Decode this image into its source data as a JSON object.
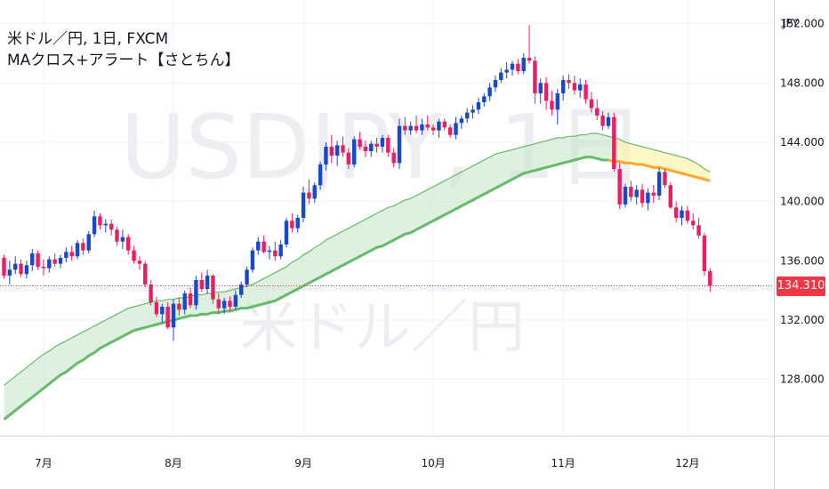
{
  "header": {
    "line1": "米ドル／円, 1日, FXCM",
    "line2": "MAクロス+アラート【さとちん】"
  },
  "watermark": {
    "main": "USDJPY, 1日",
    "sub": "米ドル／円"
  },
  "currency_label": "JPY",
  "last_price_label": "134.310",
  "colors": {
    "up": "#1848cc",
    "down": "#e91e63",
    "ma_green": "#66bb6a",
    "ma_orange": "#ffa726",
    "band_green": "#c8e6c9",
    "band_yellow": "#fff3a0",
    "price_tag": "#f23645"
  },
  "chart_data": {
    "type": "candlestick",
    "y_ticks": [
      "152.000",
      "148.000",
      "144.000",
      "140.000",
      "136.000",
      "132.000",
      "128.000"
    ],
    "y_tick_values": [
      152,
      148,
      144,
      140,
      136,
      132,
      128
    ],
    "ylim": [
      124.2,
      153.6
    ],
    "x_ticks": [
      "7月",
      "8月",
      "9月",
      "10月",
      "11月",
      "12月"
    ],
    "x_tick_index": [
      7,
      30,
      53,
      76,
      99,
      121
    ],
    "last_price": 134.31,
    "candles": [
      [
        136.2,
        136.4,
        134.8,
        135.0
      ],
      [
        135.0,
        136.0,
        134.4,
        135.4
      ],
      [
        135.4,
        136.3,
        135.1,
        135.8
      ],
      [
        135.8,
        136.1,
        134.9,
        135.1
      ],
      [
        135.1,
        136.0,
        134.8,
        135.7
      ],
      [
        135.7,
        136.8,
        135.3,
        136.5
      ],
      [
        136.5,
        136.7,
        135.4,
        135.6
      ],
      [
        135.6,
        136.1,
        135.0,
        135.5
      ],
      [
        135.5,
        136.3,
        135.2,
        136.1
      ],
      [
        136.1,
        136.5,
        135.6,
        135.8
      ],
      [
        135.8,
        136.4,
        135.5,
        136.2
      ],
      [
        136.2,
        136.9,
        135.9,
        136.6
      ],
      [
        136.6,
        137.0,
        136.0,
        136.3
      ],
      [
        136.3,
        137.4,
        136.1,
        137.2
      ],
      [
        137.2,
        137.5,
        136.4,
        136.7
      ],
      [
        136.7,
        138.0,
        136.5,
        137.8
      ],
      [
        137.8,
        139.4,
        137.6,
        139.0
      ],
      [
        139.0,
        139.2,
        138.1,
        138.4
      ],
      [
        138.4,
        138.8,
        137.9,
        138.5
      ],
      [
        138.5,
        138.8,
        137.7,
        138.1
      ],
      [
        138.1,
        138.3,
        137.0,
        137.3
      ],
      [
        137.3,
        138.1,
        136.8,
        137.6
      ],
      [
        137.6,
        137.8,
        136.4,
        136.7
      ],
      [
        136.7,
        137.0,
        135.8,
        136.0
      ],
      [
        136.0,
        136.3,
        135.4,
        135.8
      ],
      [
        135.8,
        136.0,
        134.2,
        134.4
      ],
      [
        134.4,
        134.7,
        133.0,
        133.2
      ],
      [
        133.2,
        133.6,
        132.2,
        132.4
      ],
      [
        132.4,
        133.1,
        131.8,
        132.9
      ],
      [
        132.9,
        133.2,
        131.4,
        131.5
      ],
      [
        131.5,
        133.4,
        130.6,
        133.1
      ],
      [
        133.1,
        133.5,
        132.3,
        132.7
      ],
      [
        132.7,
        134.0,
        132.4,
        133.8
      ],
      [
        133.8,
        134.2,
        132.8,
        133.0
      ],
      [
        133.0,
        135.0,
        132.7,
        134.7
      ],
      [
        134.7,
        135.2,
        133.9,
        134.1
      ],
      [
        134.1,
        135.4,
        133.8,
        135.0
      ],
      [
        135.0,
        135.1,
        133.1,
        133.4
      ],
      [
        133.4,
        133.8,
        132.4,
        132.8
      ],
      [
        132.8,
        133.5,
        132.4,
        133.3
      ],
      [
        133.3,
        133.6,
        132.6,
        132.9
      ],
      [
        132.9,
        134.0,
        132.7,
        133.7
      ],
      [
        133.7,
        134.6,
        133.5,
        134.4
      ],
      [
        134.4,
        135.6,
        134.2,
        135.4
      ],
      [
        135.4,
        136.9,
        135.2,
        136.7
      ],
      [
        136.7,
        137.6,
        136.4,
        137.3
      ],
      [
        137.3,
        137.7,
        136.5,
        136.6
      ],
      [
        136.6,
        137.0,
        136.1,
        136.7
      ],
      [
        136.7,
        137.3,
        136.0,
        136.3
      ],
      [
        136.3,
        137.4,
        136.1,
        137.1
      ],
      [
        137.1,
        138.9,
        136.9,
        138.7
      ],
      [
        138.7,
        139.2,
        137.9,
        138.2
      ],
      [
        138.2,
        139.1,
        137.9,
        138.9
      ],
      [
        138.9,
        141.0,
        138.6,
        140.6
      ],
      [
        140.6,
        141.5,
        139.8,
        140.2
      ],
      [
        140.2,
        141.3,
        139.9,
        141.1
      ],
      [
        141.1,
        142.7,
        140.8,
        142.5
      ],
      [
        142.5,
        144.0,
        142.1,
        143.7
      ],
      [
        143.7,
        144.5,
        142.6,
        143.1
      ],
      [
        143.1,
        144.1,
        142.4,
        143.8
      ],
      [
        143.8,
        144.4,
        143.0,
        143.3
      ],
      [
        143.3,
        143.6,
        142.2,
        142.5
      ],
      [
        142.5,
        144.4,
        142.3,
        144.2
      ],
      [
        144.2,
        144.7,
        143.5,
        143.7
      ],
      [
        143.7,
        144.1,
        143.0,
        143.4
      ],
      [
        143.4,
        144.1,
        143.0,
        143.9
      ],
      [
        143.9,
        144.3,
        143.3,
        143.7
      ],
      [
        143.7,
        144.5,
        143.3,
        144.3
      ],
      [
        144.3,
        144.5,
        143.0,
        143.3
      ],
      [
        143.3,
        143.6,
        142.3,
        142.6
      ],
      [
        142.6,
        145.6,
        142.2,
        145.1
      ],
      [
        145.1,
        145.7,
        144.5,
        144.8
      ],
      [
        144.8,
        145.4,
        144.5,
        145.1
      ],
      [
        145.1,
        145.8,
        144.6,
        144.8
      ],
      [
        144.8,
        145.6,
        144.5,
        145.2
      ],
      [
        145.2,
        145.8,
        144.8,
        145.0
      ],
      [
        145.0,
        145.2,
        144.5,
        144.8
      ],
      [
        144.8,
        145.6,
        144.3,
        145.4
      ],
      [
        145.4,
        145.6,
        144.8,
        145.0
      ],
      [
        145.0,
        145.2,
        144.3,
        144.5
      ],
      [
        144.5,
        145.7,
        144.2,
        145.3
      ],
      [
        145.3,
        145.8,
        144.9,
        145.6
      ],
      [
        145.6,
        146.3,
        145.3,
        146.0
      ],
      [
        146.0,
        146.5,
        145.6,
        146.2
      ],
      [
        146.2,
        147.0,
        145.9,
        146.7
      ],
      [
        146.7,
        147.3,
        146.4,
        147.1
      ],
      [
        147.1,
        148.0,
        146.8,
        147.7
      ],
      [
        147.7,
        148.5,
        147.4,
        148.2
      ],
      [
        148.2,
        149.0,
        148.0,
        148.7
      ],
      [
        148.7,
        149.4,
        148.3,
        148.9
      ],
      [
        148.9,
        149.5,
        148.5,
        149.3
      ],
      [
        149.3,
        149.6,
        148.6,
        148.8
      ],
      [
        148.8,
        150.0,
        148.6,
        149.7
      ],
      [
        149.7,
        151.9,
        149.3,
        149.5
      ],
      [
        149.5,
        149.8,
        146.6,
        147.3
      ],
      [
        147.3,
        148.3,
        146.6,
        148.0
      ],
      [
        148.0,
        148.4,
        146.2,
        146.8
      ],
      [
        146.8,
        147.5,
        145.8,
        146.2
      ],
      [
        146.2,
        147.6,
        145.2,
        147.3
      ],
      [
        147.3,
        148.5,
        146.8,
        148.2
      ],
      [
        148.2,
        148.6,
        147.6,
        148.0
      ],
      [
        148.0,
        148.5,
        147.2,
        147.5
      ],
      [
        147.5,
        148.3,
        147.0,
        147.9
      ],
      [
        147.9,
        148.2,
        146.6,
        146.9
      ],
      [
        146.9,
        147.4,
        146.0,
        146.3
      ],
      [
        146.3,
        146.9,
        145.5,
        145.8
      ],
      [
        145.8,
        146.1,
        144.8,
        145.1
      ],
      [
        145.1,
        146.0,
        144.9,
        145.7
      ],
      [
        145.7,
        146.0,
        142.0,
        142.2
      ],
      [
        142.2,
        142.6,
        139.5,
        139.8
      ],
      [
        139.8,
        141.2,
        139.6,
        141.0
      ],
      [
        141.0,
        141.4,
        140.0,
        140.3
      ],
      [
        140.3,
        141.1,
        139.8,
        140.8
      ],
      [
        140.8,
        141.2,
        139.6,
        139.9
      ],
      [
        139.9,
        140.9,
        139.4,
        140.6
      ],
      [
        140.6,
        141.1,
        139.9,
        140.4
      ],
      [
        140.4,
        142.3,
        140.1,
        142.0
      ],
      [
        142.0,
        142.2,
        140.9,
        141.1
      ],
      [
        141.1,
        141.3,
        139.5,
        139.6
      ],
      [
        139.6,
        140.0,
        138.6,
        138.9
      ],
      [
        138.9,
        139.7,
        138.4,
        139.4
      ],
      [
        139.4,
        139.7,
        138.5,
        138.7
      ],
      [
        138.7,
        139.2,
        138.1,
        138.4
      ],
      [
        138.4,
        138.9,
        137.5,
        137.7
      ],
      [
        137.7,
        137.9,
        135.0,
        135.3
      ],
      [
        135.3,
        135.5,
        133.9,
        134.31
      ]
    ],
    "ma_fast_upper": [
      127.6,
      127.9,
      128.2,
      128.5,
      128.8,
      129.1,
      129.4,
      129.7,
      129.9,
      130.2,
      130.4,
      130.6,
      130.8,
      131.0,
      131.2,
      131.4,
      131.6,
      131.8,
      132.0,
      132.2,
      132.4,
      132.6,
      132.8,
      132.9,
      133.0,
      133.1,
      133.2,
      133.3,
      133.3,
      133.4,
      133.4,
      133.5,
      133.5,
      133.6,
      133.7,
      133.7,
      133.8,
      133.8,
      133.9,
      133.9,
      134.0,
      134.1,
      134.2,
      134.3,
      134.4,
      134.6,
      134.8,
      135.0,
      135.2,
      135.4,
      135.6,
      135.9,
      136.1,
      136.4,
      136.6,
      136.9,
      137.1,
      137.4,
      137.6,
      137.8,
      138.0,
      138.2,
      138.4,
      138.6,
      138.8,
      139.0,
      139.2,
      139.4,
      139.6,
      139.7,
      139.9,
      140.1,
      140.2,
      140.4,
      140.6,
      140.8,
      141.0,
      141.2,
      141.4,
      141.6,
      141.8,
      142.0,
      142.2,
      142.4,
      142.6,
      142.8,
      143.0,
      143.2,
      143.3,
      143.4,
      143.5,
      143.6,
      143.7,
      143.8,
      143.9,
      144.0,
      144.1,
      144.2,
      144.3,
      144.3,
      144.4,
      144.4,
      144.5,
      144.5,
      144.6,
      144.6,
      144.5,
      144.4,
      144.3,
      144.2,
      144.0,
      143.9,
      143.8,
      143.7,
      143.6,
      143.5,
      143.4,
      143.3,
      143.2,
      143.1,
      143.0,
      142.9,
      142.7,
      142.5,
      142.2,
      142.0
    ],
    "ma_slow": [
      125.3,
      125.6,
      125.9,
      126.2,
      126.5,
      126.8,
      127.1,
      127.4,
      127.7,
      128.0,
      128.3,
      128.5,
      128.8,
      129.1,
      129.3,
      129.6,
      129.8,
      130.1,
      130.3,
      130.5,
      130.7,
      130.9,
      131.1,
      131.3,
      131.4,
      131.5,
      131.6,
      131.7,
      131.8,
      131.9,
      132.0,
      132.1,
      132.2,
      132.3,
      132.3,
      132.4,
      132.4,
      132.5,
      132.5,
      132.6,
      132.6,
      132.7,
      132.8,
      132.8,
      132.9,
      133.0,
      133.1,
      133.2,
      133.3,
      133.5,
      133.7,
      133.9,
      134.1,
      134.3,
      134.5,
      134.7,
      134.9,
      135.1,
      135.3,
      135.5,
      135.7,
      135.9,
      136.1,
      136.3,
      136.5,
      136.7,
      136.9,
      137.0,
      137.2,
      137.4,
      137.6,
      137.8,
      137.9,
      138.1,
      138.3,
      138.5,
      138.7,
      138.9,
      139.1,
      139.3,
      139.5,
      139.7,
      139.9,
      140.1,
      140.3,
      140.5,
      140.7,
      140.9,
      141.1,
      141.3,
      141.5,
      141.7,
      141.9,
      142.0,
      142.1,
      142.2,
      142.3,
      142.4,
      142.5,
      142.6,
      142.7,
      142.8,
      142.9,
      143.0,
      143.0,
      142.9,
      142.8,
      142.8,
      142.7,
      142.7,
      142.6,
      142.6,
      142.5,
      142.5,
      142.4,
      142.3,
      142.3,
      142.2,
      142.1,
      142.0,
      141.9,
      141.8,
      141.7,
      141.6,
      141.5,
      141.4
    ]
  }
}
